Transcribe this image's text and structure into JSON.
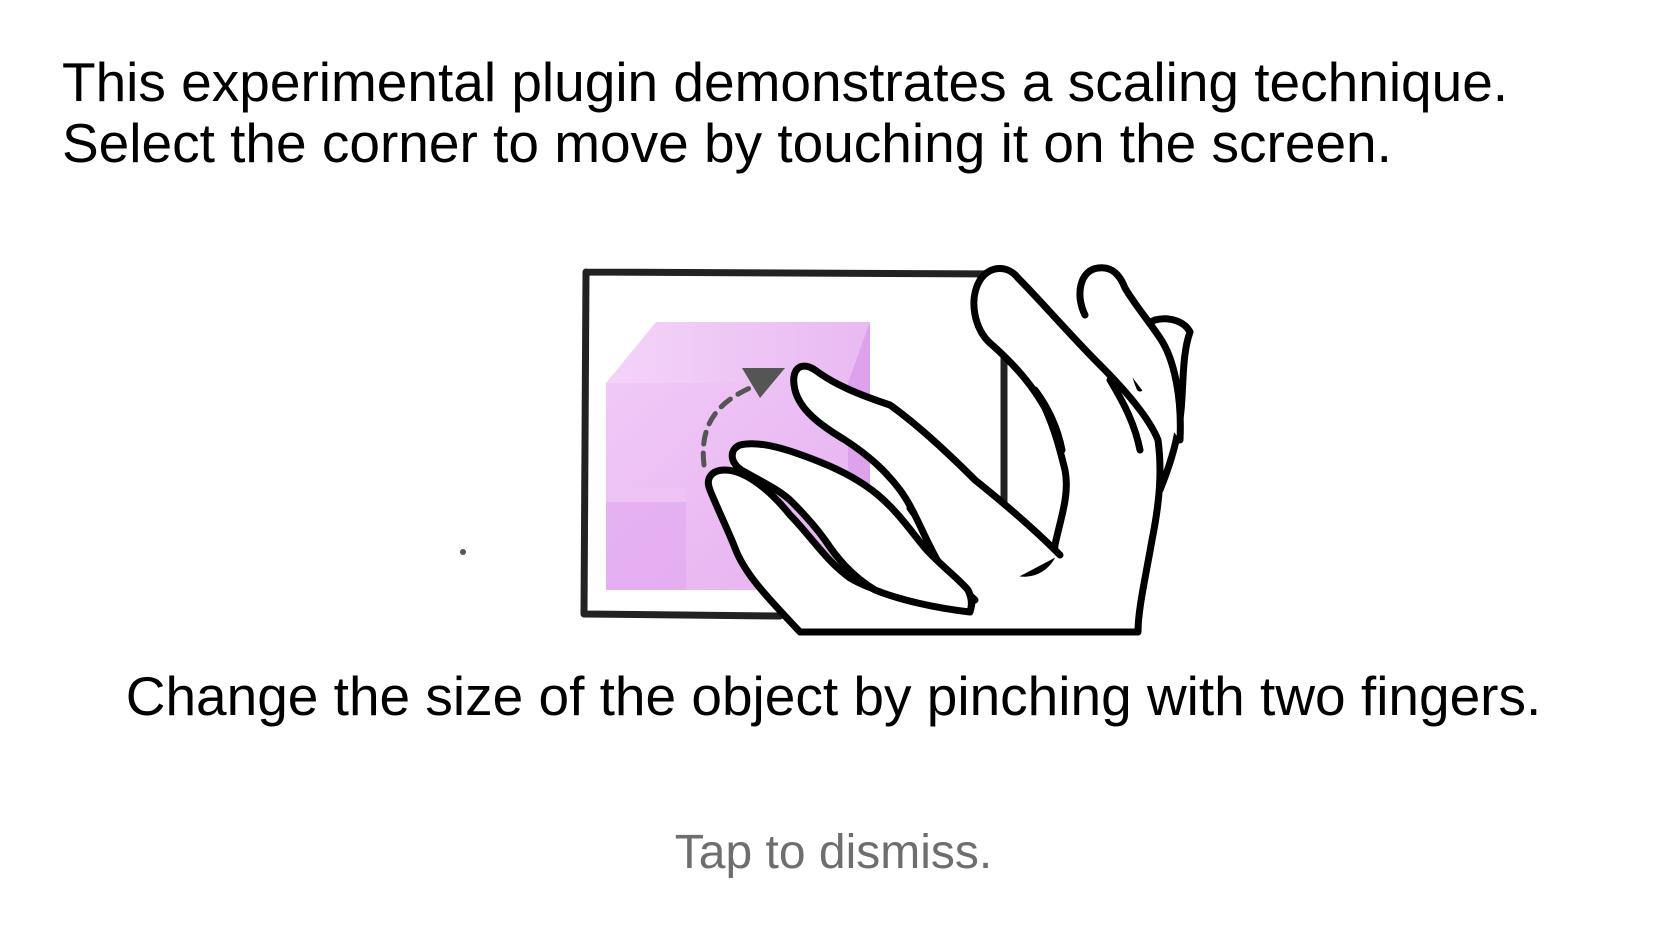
{
  "onboarding": {
    "intro_line_1": "This experimental plugin demonstrates a scaling technique.",
    "intro_line_2": "Select the corner to move by touching it on the screen.",
    "instruction": "Change the size of the object by pinching with two fingers.",
    "dismiss_label": "Tap to dismiss."
  },
  "illustration": {
    "cube_color": "#e8b4f2",
    "frame_color": "#222222",
    "arrow_color": "#555555",
    "icon": "pinch-gesture-icon"
  }
}
